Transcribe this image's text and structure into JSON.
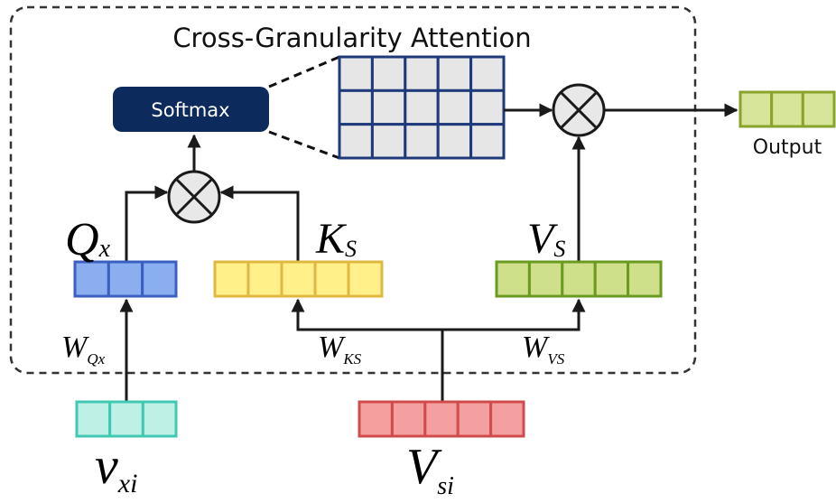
{
  "title": "Cross-Granularity Attention",
  "softmax": "Softmax",
  "output": "Output",
  "labels": {
    "q": {
      "main": "Q",
      "sub": "x"
    },
    "k": {
      "main": "K",
      "sub": "S"
    },
    "v": {
      "main": "V",
      "sub": "S"
    },
    "wq": {
      "main": "W",
      "sub": "Qx"
    },
    "wk": {
      "main": "W",
      "sub": "KS"
    },
    "wv": {
      "main": "W",
      "sub": "VS"
    },
    "vxi": {
      "main": "v",
      "sub": "xi"
    },
    "vsi": {
      "main": "V",
      "sub": "si"
    }
  }
}
